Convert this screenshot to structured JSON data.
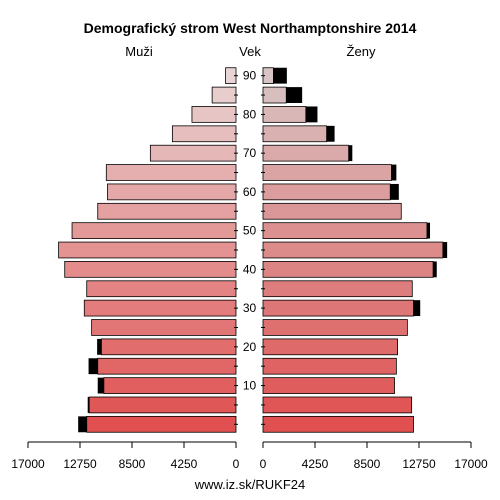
{
  "chart_data": {
    "type": "bar",
    "title": "Demografický strom West Northamptonshire 2014",
    "left_label": "Muži",
    "right_label": "Ženy",
    "center_label": "Vek",
    "footer": "www.iz.sk/RUKF24",
    "x_ticks_left": [
      "17000",
      "12750",
      "8500",
      "4250",
      "0"
    ],
    "x_ticks_right": [
      "0",
      "4250",
      "8500",
      "12750",
      "17000"
    ],
    "age_ticks": [
      "10",
      "20",
      "30",
      "40",
      "50",
      "60",
      "70",
      "80",
      "90"
    ],
    "xlim": [
      0,
      17000
    ],
    "age_groups": [
      "0-4",
      "5-9",
      "10-14",
      "15-19",
      "20-24",
      "25-29",
      "30-34",
      "35-39",
      "40-44",
      "45-49",
      "50-54",
      "55-59",
      "60-64",
      "65-69",
      "70-74",
      "75-79",
      "80-84",
      "85-89",
      "90+"
    ],
    "series": [
      {
        "name": "Muži",
        "values": [
          12200,
          12000,
          10800,
          11300,
          11000,
          11800,
          12400,
          12200,
          14000,
          14500,
          13400,
          11300,
          10500,
          10600,
          7000,
          5200,
          3600,
          1950,
          850
        ],
        "excess": [
          700,
          120,
          500,
          750,
          350,
          0,
          0,
          0,
          0,
          0,
          0,
          0,
          0,
          0,
          0,
          0,
          0,
          0,
          0
        ]
      },
      {
        "name": "Ženy",
        "values": [
          12300,
          12150,
          10750,
          10900,
          11000,
          11800,
          12300,
          12200,
          13900,
          14700,
          13400,
          11300,
          10400,
          10500,
          7000,
          5200,
          3500,
          1900,
          850
        ],
        "excess": [
          0,
          0,
          0,
          0,
          0,
          0,
          550,
          0,
          300,
          350,
          250,
          0,
          700,
          400,
          300,
          650,
          950,
          1300,
          1100
        ]
      }
    ],
    "colors": {
      "young": "#e05050",
      "old": "#e8d4d4",
      "excess": "#000000",
      "stroke": "#000000"
    }
  }
}
